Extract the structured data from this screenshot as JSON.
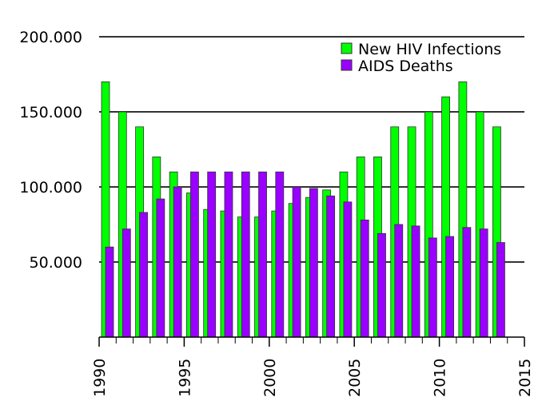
{
  "chart_data": {
    "type": "bar",
    "title": "",
    "xlabel": "",
    "ylabel": "",
    "x": [
      1990,
      1991,
      1992,
      1993,
      1994,
      1995,
      1996,
      1997,
      1998,
      1999,
      2000,
      2001,
      2002,
      2003,
      2004,
      2005,
      2006,
      2007,
      2008,
      2009,
      2010,
      2011,
      2012,
      2013
    ],
    "series": [
      {
        "name": "New HIV Infections",
        "color": "#00ff00",
        "values": [
          170000,
          150000,
          140000,
          120000,
          110000,
          96000,
          85000,
          84000,
          80000,
          80000,
          84000,
          89000,
          93000,
          98000,
          110000,
          120000,
          120000,
          140000,
          140000,
          150000,
          160000,
          170000,
          150000,
          140000
        ]
      },
      {
        "name": "AIDS Deaths",
        "color": "#9900ff",
        "values": [
          60000,
          72000,
          83000,
          92000,
          100000,
          110000,
          110000,
          110000,
          110000,
          110000,
          110000,
          100000,
          99000,
          94000,
          90000,
          78000,
          69000,
          75000,
          74000,
          66000,
          67000,
          73000,
          72000,
          63000
        ]
      }
    ],
    "xlim": [
      1990,
      2015
    ],
    "ylim": [
      0,
      200000
    ],
    "yticks": [
      50000,
      100000,
      150000,
      200000
    ],
    "ytick_labels": [
      "50.000",
      "100.000",
      "150.000",
      "200.000"
    ],
    "xticks": [
      1990,
      1995,
      2000,
      2005,
      2010,
      2015
    ],
    "xtick_labels": [
      "1990",
      "1995",
      "2000",
      "2005",
      "2010",
      "2015"
    ],
    "grid": "horizontal",
    "legend_position": "top-right"
  }
}
